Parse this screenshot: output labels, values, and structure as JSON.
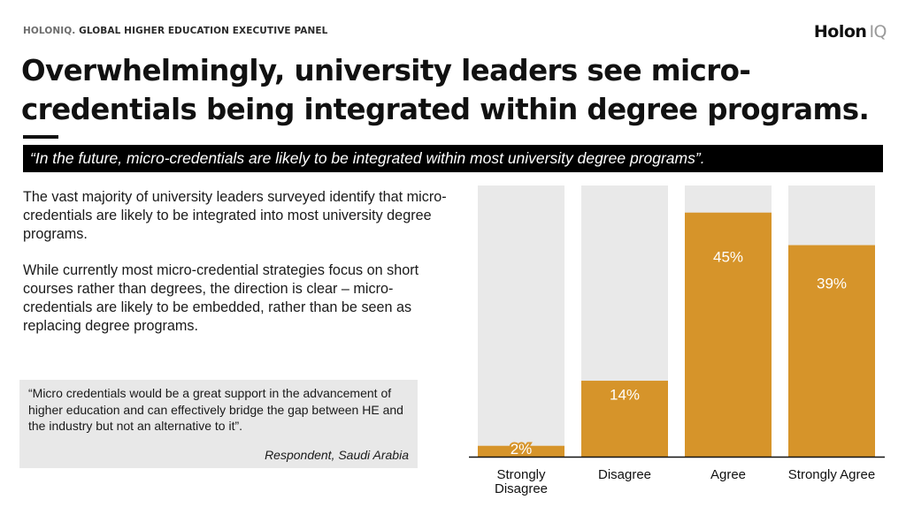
{
  "header": {
    "brand": "HOLONIQ.",
    "panel": "GLOBAL HIGHER EDUCATION EXECUTIVE PANEL",
    "logo_word": "Holon",
    "logo_suffix": "IQ"
  },
  "title": "Overwhelmingly, university leaders see micro-credentials being integrated within degree programs.",
  "banner_quote": "“In the future, micro-credentials are likely to be integrated within most university degree programs”.",
  "body": {
    "paragraph1": "The vast majority of university leaders surveyed identify that micro-credentials are likely to be integrated into most university degree programs.",
    "paragraph2": "While currently most micro-credential strategies focus on short courses rather than degrees, the direction is clear – micro-credentials are likely to be embedded, rather than be seen as replacing degree programs."
  },
  "respondent_quote": {
    "text": "“Micro credentials would be a great support in the advancement of higher education and can effectively bridge the gap between HE and the industry but not an alternative to it”.",
    "source": "Respondent, Saudi Arabia"
  },
  "chart_data": {
    "type": "bar",
    "categories": [
      "Strongly Disagree",
      "Disagree",
      "Agree",
      "Strongly Agree"
    ],
    "values": [
      2,
      14,
      45,
      39
    ],
    "value_labels": [
      "2%",
      "14%",
      "45%",
      "39%"
    ],
    "category_lines": [
      [
        "Strongly",
        "Disagree"
      ],
      [
        "Disagree"
      ],
      [
        "Agree"
      ],
      [
        "Strongly Agree"
      ]
    ],
    "ylim": [
      0,
      50
    ],
    "title": "",
    "xlabel": "",
    "ylabel": "",
    "grid": false,
    "colors": {
      "bar": "#D6942A",
      "track": "#E9E9E9",
      "axis": "#111111",
      "label_on_bar": "#ffffff",
      "category_text": "#111111"
    }
  }
}
